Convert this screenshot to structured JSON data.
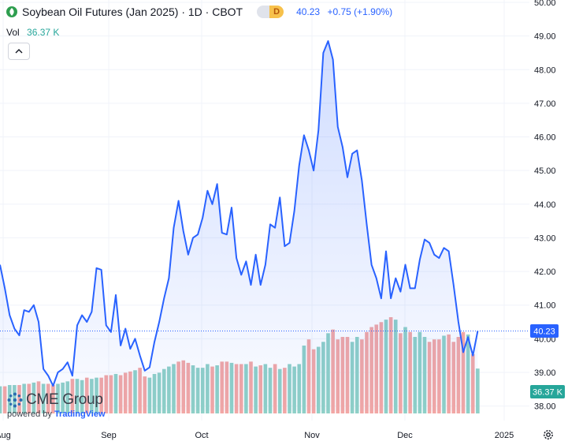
{
  "header": {
    "title": "Soybean Oil Futures (Jan 2025) · 1D · CBOT",
    "timeframe_badge": "D",
    "last_price": "40.23",
    "change": "+0.75 (+1.90%)"
  },
  "volume_legend": {
    "label": "Vol",
    "value": "36.37 K"
  },
  "price_tag": "40.23",
  "volume_tag": "36.37 K",
  "brand": {
    "name": "CME Group",
    "powered_prefix": "powered by",
    "powered_brand": "TradingView"
  },
  "colors": {
    "line": "#2962ff",
    "up_volume": "#26a69a",
    "down_volume": "#ef5350",
    "grid": "#f0f3fa"
  },
  "icons": [
    "logo-dot-icon",
    "chevron-up-icon",
    "cme-globe-icon",
    "gear-icon"
  ],
  "chart_data": {
    "type": "line",
    "grid": true,
    "y_axis_position": "right",
    "y_range": [
      37.85,
      50.0
    ],
    "y_ticks": [
      "38.00",
      "39.00",
      "40.00",
      "41.00",
      "42.00",
      "43.00",
      "44.00",
      "45.00",
      "46.00",
      "47.00",
      "48.00",
      "49.00",
      "50.00"
    ],
    "x_ticks": [
      "Aug",
      "Sep",
      "Oct",
      "Nov",
      "Dec",
      "2025"
    ],
    "series": [
      {
        "values": [
          42.2,
          41.5,
          40.7,
          40.3,
          40.1,
          40.85,
          40.8,
          41.0,
          40.5,
          39.1,
          38.9,
          38.6,
          39.0,
          39.1,
          39.3,
          38.9,
          40.4,
          40.7,
          40.5,
          40.8,
          42.1,
          42.05,
          40.4,
          40.2,
          41.3,
          39.8,
          40.3,
          39.7,
          40.0,
          39.5,
          39.05,
          39.15,
          39.9,
          40.5,
          41.2,
          41.8,
          43.3,
          44.1,
          43.2,
          42.5,
          43.0,
          43.1,
          43.6,
          44.4,
          44.0,
          44.6,
          43.15,
          43.1,
          43.9,
          42.4,
          41.9,
          42.3,
          41.6,
          42.5,
          41.6,
          42.2,
          43.4,
          43.3,
          44.2,
          42.75,
          42.85,
          43.8,
          45.15,
          46.05,
          45.6,
          45.0,
          46.2,
          48.5,
          48.85,
          48.3,
          46.3,
          45.7,
          44.8,
          45.5,
          45.6,
          44.7,
          43.4,
          42.2,
          41.8,
          41.2,
          42.6,
          41.2,
          41.8,
          41.4,
          42.2,
          41.5,
          41.5,
          42.35,
          42.95,
          42.85,
          42.5,
          42.4,
          42.7,
          42.6,
          41.6,
          40.5,
          39.6,
          40.05,
          39.5,
          40.23
        ]
      }
    ],
    "volume_k": [
      22,
      22,
      23,
      23,
      23,
      24,
      24,
      25,
      26,
      24,
      24,
      23,
      24,
      25,
      26,
      28,
      28,
      27,
      29,
      28,
      29,
      29,
      31,
      31,
      32,
      31,
      33,
      34,
      35,
      37,
      30,
      29,
      32,
      33,
      36,
      38,
      40,
      42,
      43,
      41,
      39,
      37,
      37,
      40,
      38,
      39,
      42,
      42,
      41,
      40,
      40,
      40,
      42,
      38,
      39,
      40,
      37,
      40,
      36,
      37,
      40,
      38,
      40,
      55,
      60,
      52,
      54,
      58,
      65,
      68,
      60,
      62,
      62,
      58,
      62,
      60,
      66,
      70,
      72,
      74,
      76,
      78,
      76,
      65,
      70,
      66,
      62,
      66,
      62,
      58,
      60,
      60,
      63,
      64,
      58,
      62,
      66,
      64,
      48,
      36.37
    ],
    "volume_up": [
      1,
      0,
      1,
      1,
      0,
      1,
      0,
      1,
      0,
      1,
      0,
      0,
      1,
      1,
      1,
      0,
      1,
      1,
      0,
      1,
      1,
      0,
      0,
      0,
      1,
      0,
      0,
      0,
      1,
      0,
      0,
      1,
      1,
      1,
      1,
      1,
      1,
      0,
      0,
      0,
      1,
      1,
      1,
      1,
      0,
      1,
      0,
      0,
      1,
      0,
      0,
      1,
      0,
      1,
      0,
      1,
      1,
      0,
      1,
      0,
      1,
      1,
      1,
      1,
      0,
      0,
      1,
      1,
      1,
      0,
      0,
      0,
      0,
      1,
      1,
      0,
      0,
      0,
      0,
      0,
      1,
      0,
      1,
      0,
      1,
      0,
      1,
      1,
      1,
      0,
      0,
      0,
      1,
      0,
      0,
      0,
      0,
      1,
      0,
      1
    ]
  }
}
